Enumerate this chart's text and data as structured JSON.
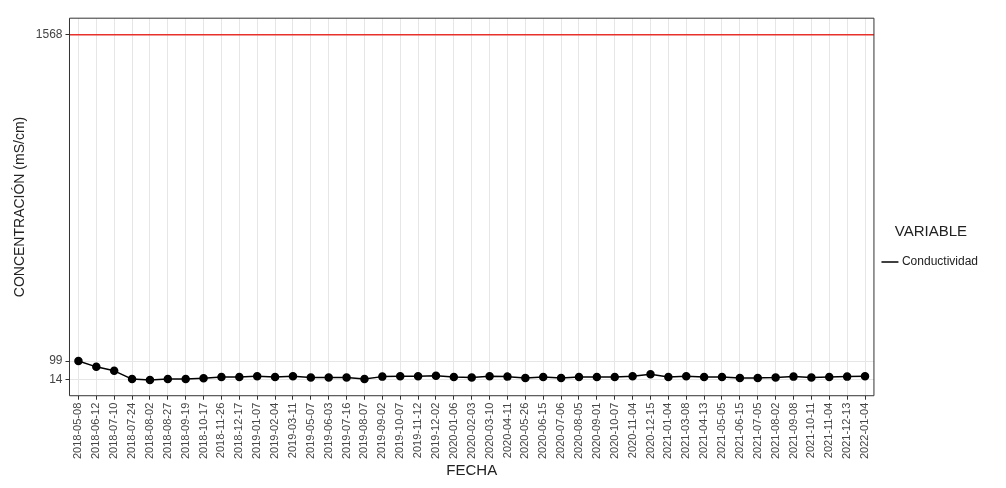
{
  "chart_data": {
    "type": "line",
    "xlabel": "FECHA",
    "ylabel": "CONCENTRACIÓN (mS/cm)",
    "legend_title": "VARIABLE",
    "legend": "right",
    "grid": true,
    "marker": "circle",
    "line_style": "solid",
    "categories": [
      "2018-05-08",
      "2018-06-12",
      "2018-07-10",
      "2018-07-24",
      "2018-08-02",
      "2018-08-27",
      "2018-09-19",
      "2018-10-17",
      "2018-11-26",
      "2018-12-17",
      "2019-01-07",
      "2019-02-04",
      "2019-03-11",
      "2019-05-07",
      "2019-06-03",
      "2019-07-16",
      "2019-08-07",
      "2019-09-02",
      "2019-10-07",
      "2019-11-12",
      "2019-12-02",
      "2020-01-06",
      "2020-02-03",
      "2020-03-10",
      "2020-04-11",
      "2020-05-26",
      "2020-06-15",
      "2020-07-06",
      "2020-08-05",
      "2020-09-01",
      "2020-10-07",
      "2020-11-04",
      "2020-12-15",
      "2021-01-04",
      "2021-03-08",
      "2021-04-13",
      "2021-05-05",
      "2021-06-15",
      "2021-07-05",
      "2021-08-02",
      "2021-09-08",
      "2021-10-11",
      "2021-11-04",
      "2021-12-13",
      "2022-01-04"
    ],
    "series": [
      {
        "name": "Conductividad",
        "color": "#000000",
        "values": [
          99,
          73,
          55,
          18,
          14,
          18,
          18,
          22,
          27,
          27,
          31,
          27,
          31,
          25,
          25,
          25,
          18,
          29,
          31,
          31,
          33,
          27,
          25,
          31,
          29,
          23,
          27,
          23,
          27,
          27,
          27,
          31,
          40,
          27,
          31,
          27,
          27,
          23,
          23,
          25,
          29,
          25,
          27,
          29,
          31
        ]
      }
    ],
    "ylim": [
      -57,
      1642
    ],
    "yticks": [
      14,
      99,
      1568
    ],
    "ref_lines": [
      {
        "axis": "y",
        "value": 1568,
        "color": "#e8312a"
      }
    ]
  }
}
